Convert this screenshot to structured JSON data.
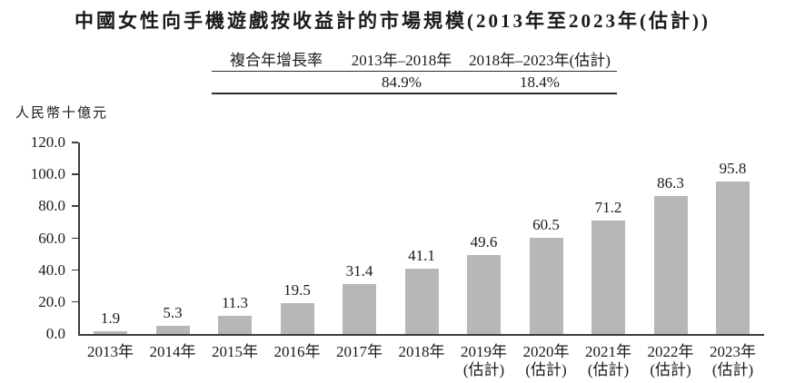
{
  "title": "中國女性向手機遊戲按收益計的市場規模(2013年至2023年(估計))",
  "cagr_table": {
    "row_label": "複合年增長率",
    "col1_header": "2013年–2018年",
    "col2_header": "2018年–2023年(估計)",
    "col1_value": "84.9%",
    "col2_value": "18.4%"
  },
  "chart_data": {
    "type": "bar",
    "title": "中國女性向手機遊戲按收益計的市場規模(2013年至2023年(估計))",
    "ylabel": "人民幣十億元",
    "xlabel": "",
    "categories": [
      "2013年",
      "2014年",
      "2015年",
      "2016年",
      "2017年",
      "2018年",
      "2019年",
      "2020年",
      "2021年",
      "2022年",
      "2023年"
    ],
    "category_notes": [
      "",
      "",
      "",
      "",
      "",
      "",
      "(估計)",
      "(估計)",
      "(估計)",
      "(估計)",
      "(估計)"
    ],
    "values": [
      1.9,
      5.3,
      11.3,
      19.5,
      31.4,
      41.1,
      49.6,
      60.5,
      71.2,
      86.3,
      95.8
    ],
    "ylim": [
      0,
      120
    ],
    "ytick_step": 20,
    "ytick_labels": [
      "0.0",
      "20.0",
      "40.0",
      "60.0",
      "80.0",
      "100.0",
      "120.0"
    ],
    "grid": false,
    "legend": "none",
    "bar_color": "#b7b7b7",
    "axis_color": "#3d3d3d"
  }
}
